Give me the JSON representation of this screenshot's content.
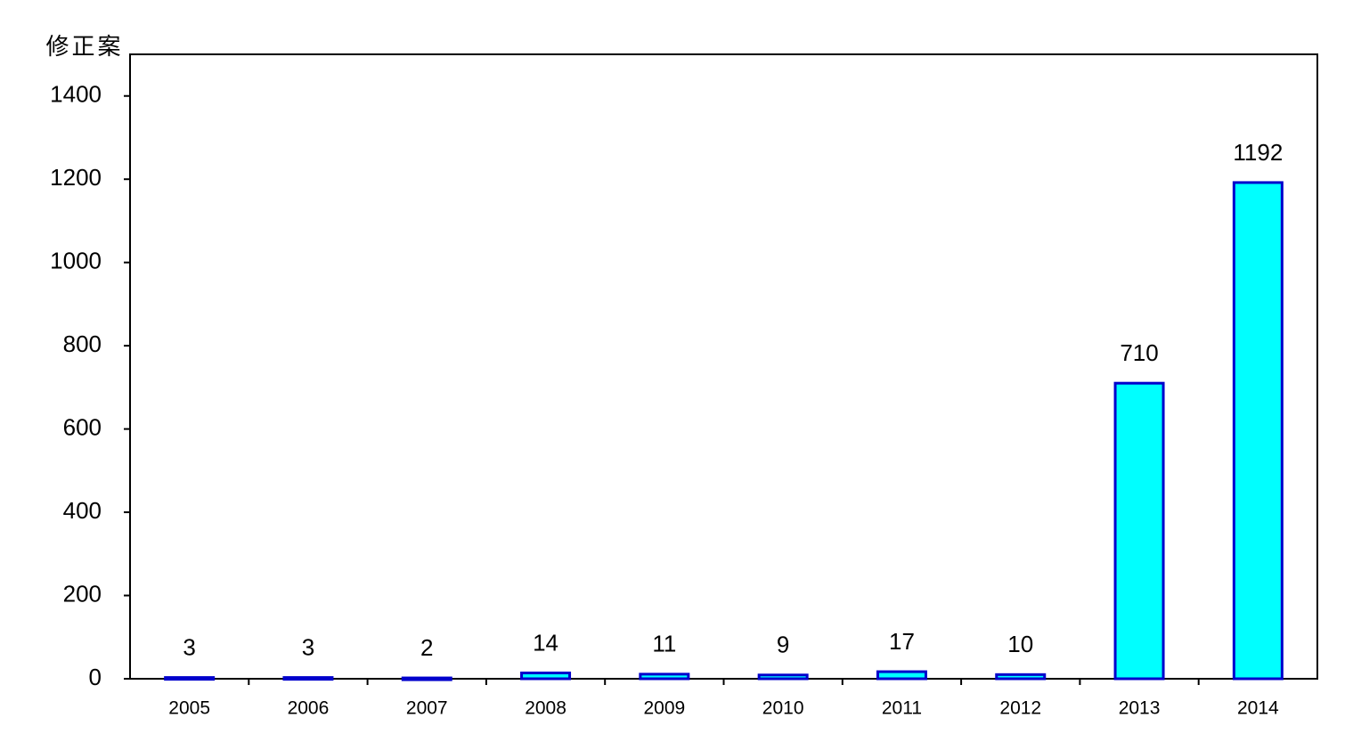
{
  "chart_data": {
    "type": "bar",
    "y_label": "修正案",
    "categories": [
      "2005",
      "2006",
      "2007",
      "2008",
      "2009",
      "2010",
      "2011",
      "2012",
      "2013",
      "2014"
    ],
    "values": [
      3,
      3,
      2,
      14,
      11,
      9,
      17,
      10,
      710,
      1192
    ],
    "color": "#00ffff",
    "edge_color": "#0000cc",
    "ylim": [
      0,
      1500
    ],
    "yticks": [
      0,
      200,
      400,
      600,
      800,
      1000,
      1200,
      1400
    ],
    "grid": false
  }
}
